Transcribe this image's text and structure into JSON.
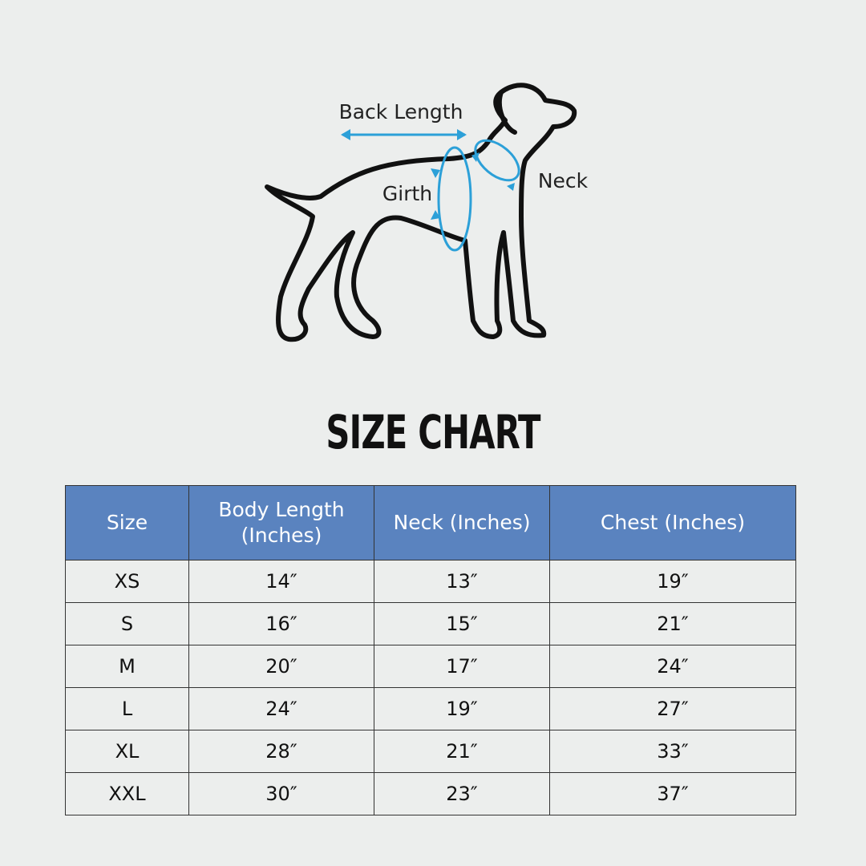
{
  "diagram": {
    "labels": {
      "back_length": "Back Length",
      "girth": "Girth",
      "neck": "Neck"
    }
  },
  "title": "SIZE CHART",
  "table": {
    "headers": [
      "Size",
      "Body Length (Inches)",
      "Neck (Inches)",
      "Chest (Inches)"
    ],
    "rows": [
      [
        "XS",
        "14″",
        "13″",
        "19″"
      ],
      [
        "S",
        "16″",
        "15″",
        "21″"
      ],
      [
        "M",
        "20″",
        "17″",
        "24″"
      ],
      [
        "L",
        "24″",
        "19″",
        "27″"
      ],
      [
        "XL",
        "28″",
        "21″",
        "33″"
      ],
      [
        "XXL",
        "30″",
        "23″",
        "37″"
      ]
    ]
  }
}
